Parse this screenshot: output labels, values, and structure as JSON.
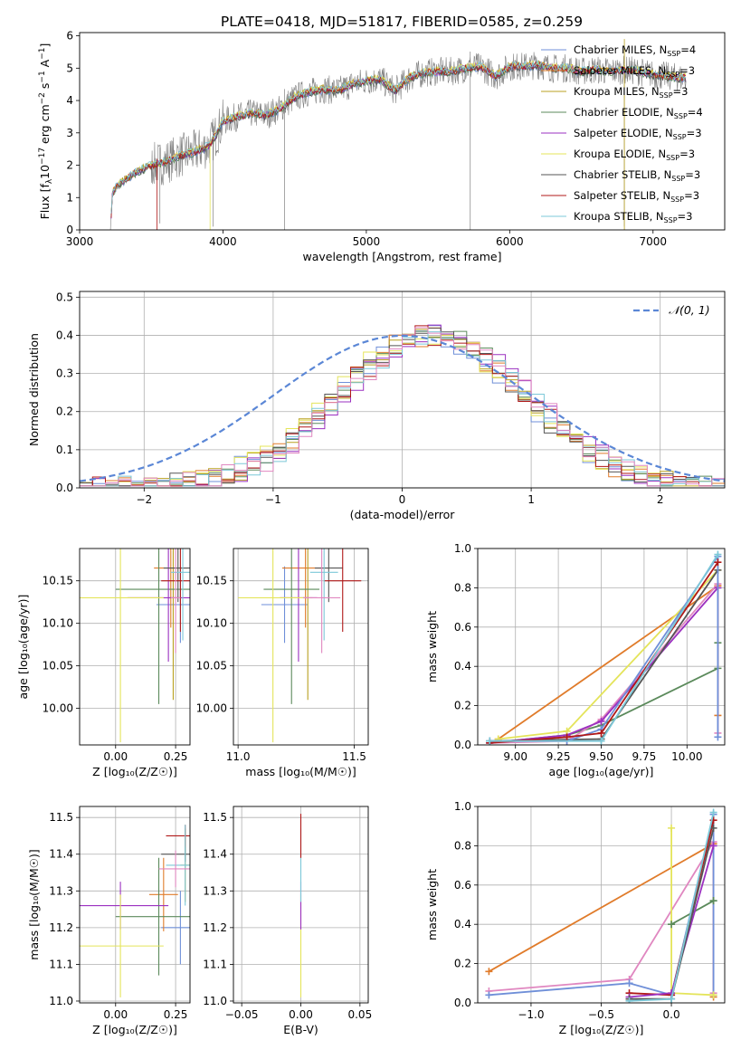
{
  "title": "PLATE=0418, MJD=51817, FIBERID=0585, z=0.259",
  "colors": {
    "chabrier_miles": "#6f8fd8",
    "salpeter_miles": "#e07b2a",
    "kroupa_miles": "#b8a020",
    "chabrier_elodie": "#5b8a5b",
    "salpeter_elodie": "#9b30c0",
    "kroupa_elodie": "#e4e45a",
    "chabrier_stelib": "#555555",
    "salpeter_stelib": "#b01818",
    "kroupa_stelib": "#7cc8d8",
    "pink": "#e087c0",
    "gaussian": "#5b87d6"
  },
  "legend_spectrum": [
    {
      "pre": "Chabrier MILES, N",
      "sub": "SSP",
      "post": "=4",
      "color_key": "chabrier_miles"
    },
    {
      "pre": "Salpeter MILES, N",
      "sub": "SSP",
      "post": "=3",
      "color_key": "salpeter_miles"
    },
    {
      "pre": "Kroupa MILES, N",
      "sub": "SSP",
      "post": "=3",
      "color_key": "kroupa_miles"
    },
    {
      "pre": "Chabrier ELODIE, N",
      "sub": "SSP",
      "post": "=4",
      "color_key": "chabrier_elodie"
    },
    {
      "pre": "Salpeter ELODIE, N",
      "sub": "SSP",
      "post": "=3",
      "color_key": "salpeter_elodie"
    },
    {
      "pre": "Kroupa ELODIE, N",
      "sub": "SSP",
      "post": "=3",
      "color_key": "kroupa_elodie"
    },
    {
      "pre": "Chabrier STELIB, N",
      "sub": "SSP",
      "post": "=3",
      "color_key": "chabrier_stelib"
    },
    {
      "pre": "Salpeter STELIB, N",
      "sub": "SSP",
      "post": "=3",
      "color_key": "salpeter_stelib"
    },
    {
      "pre": "Kroupa STELIB, N",
      "sub": "SSP",
      "post": "=3",
      "color_key": "kroupa_stelib"
    }
  ],
  "chart_data": [
    {
      "id": "spectrum",
      "type": "line",
      "xlabel": "wavelength [Angstrom, rest frame]",
      "ylabel": {
        "pre": "Flux [f",
        "sub": "λ",
        "mid": "10",
        "sup1": "−17",
        "mid2": " erg cm",
        "sup2": "−2",
        "mid3": " s",
        "sup3": "−1",
        "mid4": " A",
        "sup4": "−1",
        "post": "]"
      },
      "xlim": [
        3000,
        7500
      ],
      "ylim": [
        0,
        6.1
      ],
      "xticks": [
        3000,
        4000,
        5000,
        6000,
        7000
      ],
      "yticks": [
        0,
        1,
        2,
        3,
        4,
        5,
        6
      ],
      "continuum": [
        [
          3215,
          0.0
        ],
        [
          3230,
          1.2
        ],
        [
          3300,
          1.5
        ],
        [
          3400,
          1.8
        ],
        [
          3500,
          2.0
        ],
        [
          3600,
          2.1
        ],
        [
          3700,
          2.3
        ],
        [
          3800,
          2.4
        ],
        [
          3850,
          2.5
        ],
        [
          3900,
          2.6
        ],
        [
          3960,
          3.0
        ],
        [
          4000,
          3.35
        ],
        [
          4100,
          3.5
        ],
        [
          4200,
          3.6
        ],
        [
          4300,
          3.55
        ],
        [
          4400,
          3.75
        ],
        [
          4500,
          4.1
        ],
        [
          4600,
          4.25
        ],
        [
          4700,
          4.35
        ],
        [
          4800,
          4.3
        ],
        [
          4900,
          4.5
        ],
        [
          5000,
          4.6
        ],
        [
          5100,
          4.65
        ],
        [
          5200,
          4.3
        ],
        [
          5300,
          4.7
        ],
        [
          5400,
          4.85
        ],
        [
          5500,
          4.9
        ],
        [
          5600,
          4.9
        ],
        [
          5700,
          5.0
        ],
        [
          5800,
          5.05
        ],
        [
          5900,
          4.75
        ],
        [
          6000,
          5.05
        ],
        [
          6100,
          5.05
        ],
        [
          6200,
          5.1
        ],
        [
          6300,
          5.0
        ],
        [
          6400,
          5.0
        ],
        [
          6500,
          4.9
        ],
        [
          6600,
          4.95
        ],
        [
          6700,
          4.9
        ],
        [
          6800,
          4.95
        ],
        [
          6900,
          4.9
        ],
        [
          7000,
          4.8
        ],
        [
          7100,
          4.75
        ],
        [
          7200,
          4.7
        ]
      ]
    },
    {
      "id": "residuals",
      "type": "histogram",
      "xlabel": "(data-model)/error",
      "ylabel": "Normed distribution",
      "xlim": [
        -2.5,
        2.5
      ],
      "ylim": [
        0,
        0.515
      ],
      "xticks": [
        -2,
        -1,
        0,
        1,
        2
      ],
      "xtick_labels": [
        "−2",
        "−1",
        "0",
        "1",
        "2"
      ],
      "yticks": [
        0.0,
        0.1,
        0.2,
        0.3,
        0.4,
        0.5
      ],
      "ytick_labels": [
        "0.0",
        "0.1",
        "0.2",
        "0.3",
        "0.4",
        "0.5"
      ],
      "legend": "𝒩(0, 1)",
      "bin_width": 0.1
    },
    {
      "id": "age-vs-z",
      "type": "errorbar",
      "xlabel": "Z [log₁₀(Z/Z☉)]",
      "ylabel": "age  [log₁₀(age/yr)]",
      "xlim": [
        -0.15,
        0.31
      ],
      "ylim": [
        9.957,
        10.188
      ],
      "xticks": [
        0.0,
        0.25
      ],
      "xtick_labels": [
        "0.00",
        "0.25"
      ],
      "yticks": [
        10.0,
        10.05,
        10.1,
        10.15
      ],
      "ytick_labels": [
        "10.00",
        "10.05",
        "10.10",
        "10.15"
      ],
      "points": [
        {
          "x": 0.27,
          "xerr": 0.1,
          "y": 10.122,
          "yerr": 0.045,
          "c": "chabrier_miles"
        },
        {
          "x": 0.23,
          "xerr": 0.07,
          "y": 10.165,
          "yerr": 0.07,
          "c": "salpeter_miles"
        },
        {
          "x": 0.24,
          "xerr": 0.02,
          "y": 10.13,
          "yerr": 0.12,
          "c": "kroupa_miles"
        },
        {
          "x": 0.18,
          "xerr": 0.18,
          "y": 10.14,
          "yerr": 0.135,
          "c": "chabrier_elodie"
        },
        {
          "x": 0.22,
          "xerr": 0.17,
          "y": 10.13,
          "yerr": 0.075,
          "c": "salpeter_elodie"
        },
        {
          "x": 0.02,
          "xerr": 0.18,
          "y": 10.13,
          "yerr": 0.17,
          "c": "kroupa_elodie"
        },
        {
          "x": 0.26,
          "xerr": 0.06,
          "y": 10.165,
          "yerr": 0.04,
          "c": "chabrier_stelib"
        },
        {
          "x": 0.27,
          "xerr": 0.08,
          "y": 10.15,
          "yerr": 0.06,
          "c": "salpeter_stelib"
        },
        {
          "x": 0.28,
          "xerr": 0.05,
          "y": 10.16,
          "yerr": 0.08,
          "c": "kroupa_stelib"
        },
        {
          "x": 0.25,
          "xerr": 0.02,
          "y": 10.13,
          "yerr": 0.065,
          "c": "pink"
        }
      ]
    },
    {
      "id": "age-vs-mass",
      "type": "errorbar",
      "xlabel": "mass [log₁₀(M/M☉)]",
      "ylabel": "",
      "xlim": [
        10.98,
        11.56
      ],
      "ylim": [
        9.957,
        10.188
      ],
      "xticks": [
        11.0,
        11.5
      ],
      "xtick_labels": [
        "11.0",
        "11.5"
      ],
      "yticks": [
        10.0,
        10.05,
        10.1,
        10.15
      ],
      "ytick_labels": [
        "10.00",
        "10.05",
        "10.10",
        "10.15"
      ],
      "points": [
        {
          "x": 11.2,
          "xerr": 0.1,
          "y": 10.122,
          "yerr": 0.045,
          "c": "chabrier_miles"
        },
        {
          "x": 11.29,
          "xerr": 0.1,
          "y": 10.165,
          "yerr": 0.07,
          "c": "salpeter_miles"
        },
        {
          "x": 11.3,
          "xerr": 0.02,
          "y": 10.13,
          "yerr": 0.12,
          "c": "kroupa_miles"
        },
        {
          "x": 11.23,
          "xerr": 0.12,
          "y": 10.14,
          "yerr": 0.135,
          "c": "chabrier_elodie"
        },
        {
          "x": 11.26,
          "xerr": 0.08,
          "y": 10.13,
          "yerr": 0.075,
          "c": "salpeter_elodie"
        },
        {
          "x": 11.15,
          "xerr": 0.15,
          "y": 10.13,
          "yerr": 0.17,
          "c": "kroupa_elodie"
        },
        {
          "x": 11.39,
          "xerr": 0.06,
          "y": 10.165,
          "yerr": 0.04,
          "c": "chabrier_stelib"
        },
        {
          "x": 11.45,
          "xerr": 0.08,
          "y": 10.15,
          "yerr": 0.06,
          "c": "salpeter_stelib"
        },
        {
          "x": 11.37,
          "xerr": 0.06,
          "y": 10.16,
          "yerr": 0.08,
          "c": "kroupa_stelib"
        },
        {
          "x": 11.36,
          "xerr": 0.08,
          "y": 10.13,
          "yerr": 0.065,
          "c": "pink"
        }
      ]
    },
    {
      "id": "mass-weight-vs-age",
      "type": "line",
      "xlabel": "age  [log₁₀(age/yr)]",
      "ylabel": "mass weight",
      "xlim": [
        8.78,
        10.22
      ],
      "ylim": [
        0,
        1.0
      ],
      "xticks": [
        9.0,
        9.25,
        9.5,
        9.75,
        10.0
      ],
      "xtick_labels": [
        "9.00",
        "9.25",
        "9.50",
        "9.75",
        "10.00"
      ],
      "yticks": [
        0.0,
        0.2,
        0.4,
        0.6,
        0.8,
        1.0
      ],
      "ytick_labels": [
        "0.0",
        "0.2",
        "0.4",
        "0.6",
        "0.8",
        "1.0"
      ],
      "series": [
        {
          "c": "salpeter_miles",
          "x": [
            8.9,
            10.18,
            10.18
          ],
          "y": [
            0.03,
            0.81,
            0.15
          ]
        },
        {
          "c": "chabrier_elodie",
          "x": [
            8.85,
            9.3,
            9.5,
            10.18,
            10.18
          ],
          "y": [
            0.01,
            0.05,
            0.1,
            0.39,
            0.52
          ]
        },
        {
          "c": "pink",
          "x": [
            8.85,
            9.3,
            9.5,
            10.18,
            10.18
          ],
          "y": [
            0.01,
            0.02,
            0.13,
            0.82,
            0.06
          ]
        },
        {
          "c": "salpeter_elodie",
          "x": [
            8.85,
            9.3,
            9.5,
            10.18
          ],
          "y": [
            0.01,
            0.05,
            0.12,
            0.8
          ]
        },
        {
          "c": "kroupa_elodie",
          "x": [
            8.9,
            9.3,
            10.18
          ],
          "y": [
            0.03,
            0.07,
            0.89
          ]
        },
        {
          "c": "chabrier_stelib",
          "x": [
            8.85,
            9.5,
            10.18
          ],
          "y": [
            0.02,
            0.03,
            0.89
          ]
        },
        {
          "c": "chabrier_miles",
          "x": [
            8.85,
            9.3,
            9.5,
            10.18,
            10.18
          ],
          "y": [
            0.02,
            0.02,
            0.08,
            0.96,
            0.04
          ]
        },
        {
          "c": "salpeter_stelib",
          "x": [
            8.85,
            9.3,
            9.5,
            10.18
          ],
          "y": [
            0.01,
            0.04,
            0.06,
            0.93
          ]
        },
        {
          "c": "kroupa_stelib",
          "x": [
            8.85,
            9.5,
            10.18
          ],
          "y": [
            0.02,
            0.02,
            0.97
          ]
        }
      ]
    },
    {
      "id": "mass-vs-z",
      "type": "errorbar",
      "xlabel": "Z [log₁₀(Z/Z☉)]",
      "ylabel": "mass [log₁₀(M/M☉)]",
      "xlim": [
        -0.15,
        0.31
      ],
      "ylim": [
        10.995,
        11.53
      ],
      "xticks": [
        0.0,
        0.25
      ],
      "xtick_labels": [
        "0.00",
        "0.25"
      ],
      "yticks": [
        11.0,
        11.1,
        11.2,
        11.3,
        11.4,
        11.5
      ],
      "ytick_labels": [
        "11.0",
        "11.1",
        "11.2",
        "11.3",
        "11.4",
        "11.5"
      ],
      "points": [
        {
          "x": 0.27,
          "xerr": 0.08,
          "y": 11.2,
          "yerr": 0.1,
          "c": "chabrier_miles"
        },
        {
          "x": 0.2,
          "xerr": 0.06,
          "y": 11.29,
          "yerr": 0.1,
          "c": "salpeter_miles"
        },
        {
          "x": 0.29,
          "xerr": 0.02,
          "y": 11.37,
          "yerr": 0.1,
          "c": "kroupa_miles"
        },
        {
          "x": 0.18,
          "xerr": 0.18,
          "y": 11.23,
          "yerr": 0.16,
          "c": "chabrier_elodie"
        },
        {
          "x": 0.02,
          "xerr": 0.2,
          "y": 11.26,
          "yerr": 0.065,
          "c": "salpeter_elodie"
        },
        {
          "x": 0.02,
          "xerr": 0.18,
          "y": 11.15,
          "yerr": 0.14,
          "c": "kroupa_elodie"
        },
        {
          "x": 0.29,
          "xerr": 0.1,
          "y": 11.4,
          "yerr": 0.02,
          "c": "chabrier_stelib"
        },
        {
          "x": 0.29,
          "xerr": 0.08,
          "y": 11.45,
          "yerr": 0.03,
          "c": "salpeter_stelib"
        },
        {
          "x": 0.29,
          "xerr": 0.08,
          "y": 11.37,
          "yerr": 0.11,
          "c": "kroupa_stelib"
        },
        {
          "x": 0.25,
          "xerr": 0.07,
          "y": 11.36,
          "yerr": 0.05,
          "c": "pink"
        }
      ]
    },
    {
      "id": "mass-vs-ebv",
      "type": "errorbar",
      "xlabel": "E(B-V)",
      "ylabel": "",
      "xlim": [
        -0.057,
        0.057
      ],
      "ylim": [
        10.995,
        11.53
      ],
      "xticks": [
        -0.05,
        0.0,
        0.05
      ],
      "xtick_labels": [
        "−0.05",
        "0.00",
        "0.05"
      ],
      "yticks": [
        11.0,
        11.1,
        11.2,
        11.3,
        11.4,
        11.5
      ],
      "ytick_labels": [
        "11.0",
        "11.1",
        "11.2",
        "11.3",
        "11.4",
        "11.5"
      ],
      "points": [
        {
          "x": 0.0,
          "xerr": 0.0,
          "y": 11.15,
          "yerr": 0.14,
          "c": "kroupa_elodie"
        },
        {
          "x": 0.0,
          "xerr": 0.0,
          "y": 11.26,
          "yerr": 0.065,
          "c": "salpeter_elodie"
        },
        {
          "x": 0.0,
          "xerr": 0.0,
          "y": 11.37,
          "yerr": 0.1,
          "c": "kroupa_stelib"
        },
        {
          "x": 0.0,
          "xerr": 0.0,
          "y": 11.45,
          "yerr": 0.06,
          "c": "salpeter_stelib"
        }
      ]
    },
    {
      "id": "mass-weight-vs-z",
      "type": "line",
      "xlabel": "Z [log₁₀(Z/Z☉)]",
      "ylabel": "mass weight",
      "xlim": [
        -1.38,
        0.38
      ],
      "ylim": [
        0,
        1.0
      ],
      "xticks": [
        -1.0,
        -0.5,
        0.0
      ],
      "xtick_labels": [
        "−1.0",
        "−0.5",
        "0.0"
      ],
      "yticks": [
        0.0,
        0.2,
        0.4,
        0.6,
        0.8,
        1.0
      ],
      "ytick_labels": [
        "0.0",
        "0.2",
        "0.4",
        "0.6",
        "0.8",
        "1.0"
      ],
      "series": [
        {
          "c": "salpeter_miles",
          "x": [
            -1.3,
            0.3,
            0.3
          ],
          "y": [
            0.16,
            0.81,
            0.03
          ]
        },
        {
          "c": "pink",
          "x": [
            -1.3,
            -0.3,
            0.3,
            0.3
          ],
          "y": [
            0.06,
            0.12,
            0.82,
            0.05
          ]
        },
        {
          "c": "chabrier_miles",
          "x": [
            -1.3,
            -0.3,
            0.0,
            0.3,
            0.3
          ],
          "y": [
            0.04,
            0.1,
            0.04,
            0.96,
            0.04
          ]
        },
        {
          "c": "kroupa_elodie",
          "x": [
            0.0,
            0.0,
            0.3
          ],
          "y": [
            0.89,
            0.05,
            0.04
          ]
        },
        {
          "c": "chabrier_elodie",
          "x": [
            0.0,
            0.3,
            0.3
          ],
          "y": [
            0.4,
            0.52,
            0.52
          ]
        },
        {
          "c": "salpeter_stelib",
          "x": [
            -0.3,
            0.0,
            0.3
          ],
          "y": [
            0.05,
            0.04,
            0.93
          ]
        },
        {
          "c": "salpeter_elodie",
          "x": [
            -0.3,
            0.0,
            0.3
          ],
          "y": [
            0.03,
            0.05,
            0.8
          ]
        },
        {
          "c": "chabrier_stelib",
          "x": [
            -0.3,
            0.0,
            0.3
          ],
          "y": [
            0.02,
            0.02,
            0.89
          ]
        },
        {
          "c": "kroupa_stelib",
          "x": [
            -0.3,
            0.0,
            0.3
          ],
          "y": [
            0.01,
            0.02,
            0.97
          ]
        }
      ]
    }
  ]
}
